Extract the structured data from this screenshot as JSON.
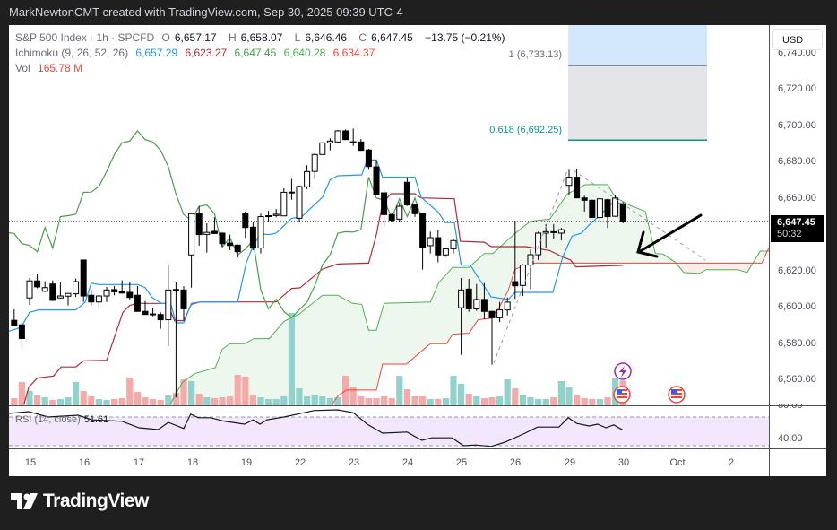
{
  "header": {
    "attribution": "MarkNewtonCMT created with TradingView.com, Sep 30, 2025 09:39 UTC-4"
  },
  "legend": {
    "symbol": "S&P 500 Index · 1h · SPCFD",
    "open_label": "O",
    "open": "6,657.17",
    "high_label": "H",
    "high": "6,658.07",
    "low_label": "L",
    "low": "6,646.46",
    "close_label": "C",
    "close": "6,647.45",
    "change": "−13.75 (−0.21%)",
    "ichimoku_label": "Ichimoku (9, 26, 52, 26)",
    "ichimoku_values": [
      "6,657.29",
      "6,623.27",
      "6,647.45",
      "6,640.28",
      "6,634.37"
    ],
    "vol_label": "Vol",
    "vol_value": "165.78 M"
  },
  "currency_button": "USD",
  "price_axis": [
    "6,740.00",
    "6,720.00",
    "6,700.00",
    "6,680.00",
    "6,660.00",
    "6,620.00",
    "6,600.00",
    "6,580.00",
    "6,560.00"
  ],
  "current_price": {
    "value": "6,647.45",
    "countdown": "50:32"
  },
  "rsi": {
    "label": "RSI (14, close)",
    "value": "51.61",
    "axis": [
      "80.00",
      "40.00"
    ]
  },
  "time_axis": [
    "15",
    "16",
    "17",
    "18",
    "19",
    "22",
    "23",
    "24",
    "25",
    "26",
    "29",
    "30",
    "Oct",
    "2"
  ],
  "fib": {
    "level_1": "1 (6,733.13)",
    "level_0618": "0.618 (6,692.25)"
  },
  "brand": "TradingView",
  "colors": {
    "up": "#ffffff",
    "down": "#000000",
    "tenkan": "#2196f3",
    "kijun": "#b22833",
    "chikou": "#43a047",
    "spanA": "#4caf50",
    "spanB": "#f44336",
    "vol_up": "#92d2cc",
    "vol_down": "#f7a9a7",
    "rsi_band": "#f3e7fd",
    "fib_teal": "#089981"
  },
  "chart_data": {
    "type": "candlestick",
    "timeframe": "1h",
    "first_bar_index": -2,
    "ohlc": [
      [
        6593,
        6599,
        6590,
        6590
      ],
      [
        6590.5,
        6592,
        6578,
        6583
      ],
      [
        6605.3,
        6616.3,
        6601.5,
        6614.7
      ],
      [
        6614.7,
        6618.8,
        6610.6,
        6611.4
      ],
      [
        6609,
        6614.5,
        6608.5,
        6611
      ],
      [
        6613,
        6615,
        6603.6,
        6604
      ],
      [
        6605.3,
        6613.8,
        6605,
        6606.4
      ],
      [
        6606.3,
        6608,
        6601.2,
        6607.8
      ],
      [
        6607.6,
        6616,
        6605.9,
        6614.3
      ],
      [
        6626.2,
        6626.2,
        6603.1,
        6606.4
      ],
      [
        6606.8,
        6609.7,
        6601.2,
        6603.1
      ],
      [
        6603.1,
        6607,
        6599.4,
        6606.4
      ],
      [
        6606.4,
        6611.4,
        6603.1,
        6609.7
      ],
      [
        6609.9,
        6611.9,
        6606.8,
        6608.7
      ],
      [
        6609,
        6615,
        6608,
        6608
      ],
      [
        6608.4,
        6613.8,
        6604.5,
        6605.6
      ],
      [
        6606.8,
        6611.9,
        6597.9,
        6597.9
      ],
      [
        6597.9,
        6603.6,
        6596.2,
        6596.2
      ],
      [
        6596.5,
        6599.8,
        6595.2,
        6596.2
      ],
      [
        6596.2,
        6597.4,
        6588.3,
        6593.3
      ],
      [
        6593.3,
        6623.7,
        6578.8,
        6609.7
      ],
      [
        6610,
        6613.8,
        6550.5,
        6609.5
      ],
      [
        6609.7,
        6611.7,
        6592.8,
        6599.3
      ],
      [
        6629,
        6652.2,
        6611,
        6651.7
      ],
      [
        6651.7,
        6655.8,
        6634.1,
        6640.2
      ],
      [
        6640.3,
        6646.4,
        6630.3,
        6641.4
      ],
      [
        6642,
        6649.7,
        6640.5,
        6640.8
      ],
      [
        6641,
        6641.3,
        6633.4,
        6635.2
      ],
      [
        6635.5,
        6640.2,
        6631.6,
        6634.2
      ],
      [
        6634.4,
        6634.7,
        6627.5,
        6630.8
      ],
      [
        6651.7,
        6652.9,
        6638.5,
        6644.1
      ],
      [
        6644.3,
        6647.3,
        6631.6,
        6632.8
      ],
      [
        6632.8,
        6651.7,
        6629.8,
        6650.1
      ],
      [
        6650.5,
        6653.3,
        6647.2,
        6650.6
      ],
      [
        6650.7,
        6654.2,
        6649.7,
        6651.4
      ],
      [
        6650.5,
        6665.7,
        6650.5,
        6663.5
      ],
      [
        6663.5,
        6670.9,
        6659.4,
        6663.6
      ],
      [
        6649.2,
        6667.3,
        6647.6,
        6666.7
      ],
      [
        6666.5,
        6678.4,
        6665.2,
        6674.9
      ],
      [
        6675,
        6685.1,
        6670.6,
        6684.3
      ],
      [
        6684.3,
        6691,
        6684.3,
        6690.7
      ],
      [
        6690.7,
        6693.2,
        6686.6,
        6691.7
      ],
      [
        6691.2,
        6697.8,
        6690.7,
        6697.3
      ],
      [
        6697.3,
        6698.1,
        6692.5,
        6692.5
      ],
      [
        6691.3,
        6698.6,
        6689.1,
        6691.2
      ],
      [
        6691.2,
        6692.8,
        6686.3,
        6686.6
      ],
      [
        6686.8,
        6687.4,
        6675.9,
        6677.7
      ],
      [
        6677.5,
        6681.3,
        6662.4,
        6662.4
      ],
      [
        6663.2,
        6664.9,
        6644.6,
        6651.2
      ],
      [
        6651.2,
        6652,
        6647,
        6648.1
      ],
      [
        6648.7,
        6658,
        6647,
        6655.8
      ],
      [
        6669,
        6671.4,
        6656,
        6656.5
      ],
      [
        6656.5,
        6657,
        6650,
        6651.7
      ],
      [
        6651.7,
        6652,
        6620.9,
        6633.3
      ],
      [
        6634.1,
        6641.8,
        6629.8,
        6638.5
      ],
      [
        6638.5,
        6642.6,
        6624.9,
        6629
      ],
      [
        6629,
        6633,
        6628,
        6632.3
      ],
      [
        6632.4,
        6637.7,
        6629.8,
        6636.9
      ],
      [
        6599.9,
        6616.3,
        6574,
        6609.7
      ],
      [
        6610.2,
        6615.8,
        6597.7,
        6599.3
      ],
      [
        6599.3,
        6613,
        6598.2,
        6604.5
      ],
      [
        6604.5,
        6613.5,
        6593.6,
        6597.9
      ],
      [
        6597.9,
        6598.2,
        6568.6,
        6594.4
      ],
      [
        6594.4,
        6603.1,
        6592,
        6598.7
      ],
      [
        6598.7,
        6605.6,
        6595.7,
        6603
      ],
      [
        6614.3,
        6647.9,
        6604.8,
        6612
      ],
      [
        6612.2,
        6624,
        6606.4,
        6623.4
      ],
      [
        6623.4,
        6632,
        6610.1,
        6629.1
      ],
      [
        6629.1,
        6641.8,
        6626.2,
        6641
      ],
      [
        6641,
        6646,
        6632.8,
        6641.8
      ],
      [
        6641.8,
        6646,
        6638,
        6641.6
      ],
      [
        6641,
        6643.9,
        6637,
        6642.9
      ],
      [
        6667.3,
        6675.9,
        6662.1,
        6671.8
      ],
      [
        6671.8,
        6676.4,
        6660.4,
        6660.4
      ],
      [
        6660.4,
        6661.6,
        6652.9,
        6659.1
      ],
      [
        6659.1,
        6659.4,
        6649.6,
        6649.6
      ],
      [
        6649.6,
        6659.9,
        6647.3,
        6659.9
      ],
      [
        6659.4,
        6659.9,
        6643.8,
        6650.1
      ],
      [
        6650.3,
        6662.1,
        6650,
        6660.3
      ],
      [
        6657.17,
        6658.07,
        6646.46,
        6647.45
      ]
    ],
    "volume_m": [
      48,
      156,
      96,
      66,
      54,
      36,
      42,
      54,
      156,
      96,
      60,
      42,
      36,
      42,
      48,
      186,
      90,
      54,
      42,
      36,
      66,
      84,
      174,
      162,
      78,
      54,
      48,
      54,
      60,
      204,
      192,
      66,
      54,
      42,
      42,
      60,
      618,
      114,
      60,
      72,
      60,
      48,
      54,
      198,
      120,
      60,
      48,
      48,
      60,
      48,
      198,
      108,
      60,
      60,
      42,
      42,
      48,
      198,
      144,
      78,
      60,
      48,
      54,
      60,
      174,
      114,
      72,
      54,
      42,
      42,
      54,
      162,
      126,
      72,
      48,
      42,
      42,
      54,
      180,
      165.78
    ],
    "tenkan": [
      [
        -2.7,
        6587
      ],
      [
        -1.1,
        6589.1
      ],
      [
        0,
        6597.4
      ],
      [
        1.2,
        6598.7
      ],
      [
        6,
        6598.7
      ],
      [
        7.2,
        6602.8
      ],
      [
        8,
        6613.5
      ],
      [
        9,
        6612.7
      ],
      [
        14,
        6612.7
      ],
      [
        15,
        6611
      ],
      [
        15.9,
        6605.6
      ],
      [
        17.1,
        6602.3
      ],
      [
        18.3,
        6602.3
      ],
      [
        19,
        6591.6
      ],
      [
        20,
        6591.6
      ],
      [
        21,
        6602.3
      ],
      [
        22.1,
        6603.1
      ],
      [
        27,
        6603.1
      ],
      [
        28.1,
        6624.5
      ],
      [
        28.9,
        6632.8
      ],
      [
        29.9,
        6640.7
      ],
      [
        31.1,
        6640.2
      ],
      [
        32,
        6641
      ],
      [
        34,
        6649.2
      ],
      [
        35.3,
        6650
      ],
      [
        38,
        6660.8
      ],
      [
        39,
        6670.3
      ],
      [
        40,
        6672.6
      ],
      [
        43.1,
        6673.1
      ],
      [
        43.8,
        6681.3
      ],
      [
        45,
        6681.3
      ],
      [
        45.8,
        6671.8
      ],
      [
        50,
        6671.8
      ],
      [
        50.8,
        6660.8
      ],
      [
        53.1,
        6652.2
      ],
      [
        53.9,
        6646.8
      ],
      [
        55.1,
        6646.8
      ],
      [
        56,
        6623.4
      ],
      [
        57.2,
        6623.4
      ],
      [
        58,
        6617.9
      ],
      [
        59.9,
        6605.9
      ],
      [
        62.1,
        6604.5
      ],
      [
        63,
        6608.4
      ],
      [
        67.9,
        6608.4
      ],
      [
        69.2,
        6628.2
      ],
      [
        70.4,
        6639.4
      ],
      [
        71.6,
        6641
      ],
      [
        72.7,
        6645.9
      ],
      [
        73.7,
        6649.7
      ],
      [
        75.6,
        6657.5
      ],
      [
        77,
        6657.3
      ]
    ],
    "kijun": [
      [
        -0.7,
        6547.2
      ],
      [
        -0.1,
        6556.2
      ],
      [
        1,
        6561.2
      ],
      [
        3.1,
        6562.3
      ],
      [
        4.1,
        6567.3
      ],
      [
        6,
        6567.3
      ],
      [
        7,
        6570.7
      ],
      [
        10,
        6571
      ],
      [
        12.1,
        6597.4
      ],
      [
        13,
        6601.2
      ],
      [
        14,
        6602.3
      ],
      [
        17.9,
        6602.3
      ],
      [
        18.8,
        6592.8
      ],
      [
        20,
        6592.8
      ],
      [
        21,
        6601.8
      ],
      [
        22.1,
        6603.1
      ],
      [
        32,
        6603.1
      ],
      [
        34,
        6610.5
      ],
      [
        35.1,
        6610.9
      ],
      [
        38,
        6621.2
      ],
      [
        40,
        6624
      ],
      [
        44,
        6624.5
      ],
      [
        45,
        6640.2
      ],
      [
        45.8,
        6657.5
      ],
      [
        46.9,
        6662.7
      ],
      [
        50,
        6662.7
      ],
      [
        50.8,
        6660.4
      ],
      [
        55.1,
        6659.9
      ],
      [
        55.9,
        6636.5
      ],
      [
        59,
        6636
      ],
      [
        59.9,
        6633.6
      ],
      [
        64.4,
        6633.6
      ],
      [
        67.5,
        6631.4
      ],
      [
        69,
        6628.2
      ],
      [
        70.2,
        6626.2
      ],
      [
        70.9,
        6622.4
      ],
      [
        77,
        6623.27
      ]
    ],
    "span_a": [
      [
        18.3,
        6547.2
      ],
      [
        19.8,
        6558.7
      ],
      [
        21.4,
        6563.6
      ],
      [
        24.1,
        6566.9
      ],
      [
        25,
        6577.1
      ],
      [
        26,
        6580.1
      ],
      [
        27.9,
        6580.1
      ],
      [
        29.1,
        6582.9
      ],
      [
        31.1,
        6582.9
      ],
      [
        33,
        6592.4
      ],
      [
        35,
        6596.5
      ],
      [
        38,
        6606.8
      ],
      [
        40,
        6606.8
      ],
      [
        41.9,
        6602.3
      ],
      [
        43.1,
        6601.8
      ],
      [
        44,
        6587.5
      ],
      [
        45,
        6587.5
      ],
      [
        46,
        6602.3
      ],
      [
        52,
        6603.1
      ],
      [
        53.1,
        6613.8
      ],
      [
        54.9,
        6622.1
      ],
      [
        57,
        6622.1
      ],
      [
        59,
        6629.8
      ],
      [
        60.1,
        6629.8
      ],
      [
        62.8,
        6640.2
      ],
      [
        65,
        6647.6
      ],
      [
        67.5,
        6648.7
      ],
      [
        69.8,
        6662.7
      ],
      [
        72.1,
        6667.7
      ],
      [
        75,
        6667.7
      ],
      [
        76,
        6660.8
      ],
      [
        77.9,
        6656.3
      ],
      [
        79.9,
        6653
      ],
      [
        81.2,
        6629.8
      ],
      [
        82.2,
        6629.5
      ],
      [
        83.8,
        6624.9
      ],
      [
        84.9,
        6619.3
      ],
      [
        86.9,
        6618.8
      ],
      [
        87.8,
        6620.9
      ],
      [
        91.9,
        6620.9
      ],
      [
        93.1,
        6619.3
      ],
      [
        94.8,
        6631.1
      ],
      [
        96,
        6631.1
      ]
    ],
    "span_b": [
      [
        18.3,
        6535
      ],
      [
        39,
        6545
      ],
      [
        40,
        6551.3
      ],
      [
        41.1,
        6554.6
      ],
      [
        45,
        6554.6
      ],
      [
        45.8,
        6568.9
      ],
      [
        48.9,
        6568.9
      ],
      [
        52,
        6580.1
      ],
      [
        54.1,
        6580.1
      ],
      [
        54.9,
        6585.4
      ],
      [
        57,
        6585.9
      ],
      [
        58.2,
        6593.3
      ],
      [
        59.9,
        6594.1
      ],
      [
        60.9,
        6599.8
      ],
      [
        62.1,
        6609.4
      ],
      [
        63,
        6621.2
      ],
      [
        65.2,
        6624.5
      ],
      [
        95,
        6624.5
      ],
      [
        96,
        6633.6
      ]
    ],
    "rsi_points": [
      [
        -2.7,
        75
      ],
      [
        -0.1,
        77.5
      ],
      [
        2.4,
        70
      ],
      [
        6.3,
        72.5
      ],
      [
        8.1,
        66
      ],
      [
        12,
        64
      ],
      [
        14.2,
        55
      ],
      [
        16.7,
        52.5
      ],
      [
        18,
        62.5
      ],
      [
        20,
        54
      ],
      [
        20.9,
        74
      ],
      [
        21.9,
        69
      ],
      [
        23.5,
        69
      ],
      [
        25.3,
        64
      ],
      [
        27.9,
        60
      ],
      [
        29,
        66
      ],
      [
        29.9,
        60
      ],
      [
        30.8,
        66
      ],
      [
        33,
        70
      ],
      [
        36.9,
        79
      ],
      [
        40,
        80
      ],
      [
        42,
        76
      ],
      [
        43.8,
        60
      ],
      [
        45.8,
        47.5
      ],
      [
        49,
        49
      ],
      [
        50.9,
        37.5
      ],
      [
        52.2,
        41
      ],
      [
        54.8,
        41
      ],
      [
        56.3,
        30
      ],
      [
        57.9,
        31
      ],
      [
        59.9,
        29
      ],
      [
        61.7,
        35
      ],
      [
        64.3,
        47.5
      ],
      [
        65.9,
        56
      ],
      [
        68.7,
        56
      ],
      [
        69.9,
        69
      ],
      [
        71,
        61
      ],
      [
        72.6,
        57.5
      ],
      [
        73.7,
        60
      ],
      [
        74.8,
        55
      ],
      [
        75.8,
        59
      ],
      [
        77,
        51.61
      ]
    ],
    "rsi_bands": [
      70,
      30
    ],
    "fib_levels": [
      1,
      0.618
    ],
    "fib_prices": [
      6733.13,
      6692.25
    ],
    "price_range": [
      6540,
      6752
    ],
    "current_price": 6647.45
  }
}
